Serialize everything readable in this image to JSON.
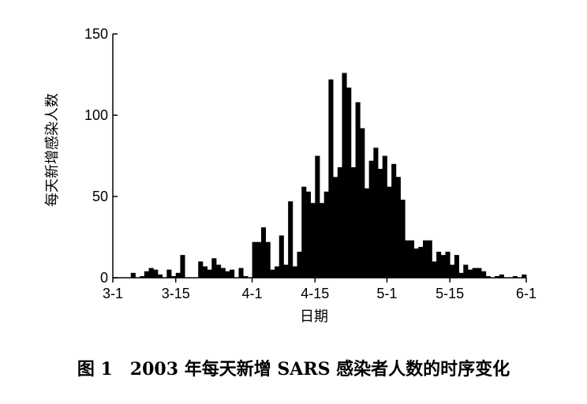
{
  "chart_data": {
    "type": "bar",
    "title": "",
    "xlabel": "日期",
    "ylabel": "每天新增感染人数",
    "ylim": [
      0,
      150
    ],
    "xlim_day": [
      0,
      92
    ],
    "yticks": [
      0,
      50,
      100,
      150
    ],
    "ytick_labels": [
      "0",
      "50",
      "100",
      "150"
    ],
    "xticks": [
      {
        "day": 0,
        "label": "3-1"
      },
      {
        "day": 14,
        "label": "3-15"
      },
      {
        "day": 31,
        "label": "4-1"
      },
      {
        "day": 45,
        "label": "4-15"
      },
      {
        "day": 61,
        "label": "5-1"
      },
      {
        "day": 75,
        "label": "5-15"
      },
      {
        "day": 92,
        "label": "6-1"
      }
    ],
    "grid": false,
    "bar_color": "#000000",
    "series": [
      {
        "values": [
          0,
          0,
          0,
          0,
          3,
          0,
          1,
          4,
          6,
          5,
          2,
          0,
          5,
          1,
          3,
          14,
          0,
          0,
          0,
          10,
          7,
          5,
          12,
          8,
          6,
          4,
          5,
          0,
          6,
          1,
          0,
          22,
          22,
          31,
          22,
          5,
          7,
          26,
          8,
          47,
          7,
          16,
          56,
          53,
          46,
          75,
          46,
          53,
          122,
          62,
          68,
          126,
          117,
          68,
          108,
          92,
          55,
          72,
          80,
          67,
          75,
          56,
          70,
          62,
          48,
          23,
          23,
          18,
          19,
          23,
          23,
          10,
          16,
          14,
          16,
          8,
          14,
          3,
          8,
          5,
          6,
          6,
          4,
          1,
          0,
          1,
          2,
          0,
          0,
          1,
          0,
          2,
          0
        ]
      }
    ]
  },
  "caption": "图 1　2003 年每天新增 SARS 感染者人数的时序变化"
}
